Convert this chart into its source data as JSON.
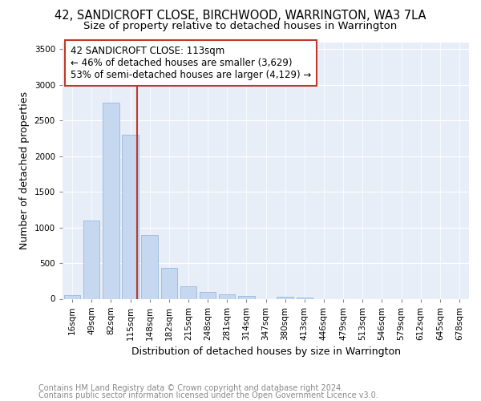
{
  "title": "42, SANDICROFT CLOSE, BIRCHWOOD, WARRINGTON, WA3 7LA",
  "subtitle": "Size of property relative to detached houses in Warrington",
  "xlabel": "Distribution of detached houses by size in Warrington",
  "ylabel": "Number of detached properties",
  "categories": [
    "16sqm",
    "49sqm",
    "82sqm",
    "115sqm",
    "148sqm",
    "182sqm",
    "215sqm",
    "248sqm",
    "281sqm",
    "314sqm",
    "347sqm",
    "380sqm",
    "413sqm",
    "446sqm",
    "479sqm",
    "513sqm",
    "546sqm",
    "579sqm",
    "612sqm",
    "645sqm",
    "678sqm"
  ],
  "values": [
    50,
    1100,
    2750,
    2300,
    900,
    430,
    170,
    100,
    60,
    40,
    0,
    30,
    20,
    0,
    0,
    0,
    0,
    0,
    0,
    0,
    0
  ],
  "bar_color": "#c5d8f0",
  "bar_edge_color": "#8ab0d8",
  "vline_x_index": 3,
  "vline_color": "#c0392b",
  "ylim": [
    0,
    3600
  ],
  "yticks": [
    0,
    500,
    1000,
    1500,
    2000,
    2500,
    3000,
    3500
  ],
  "annotation_line1": "42 SANDICROFT CLOSE: 113sqm",
  "annotation_line2": "← 46% of detached houses are smaller (3,629)",
  "annotation_line3": "53% of semi-detached houses are larger (4,129) →",
  "annotation_box_color": "#c0392b",
  "footer_line1": "Contains HM Land Registry data © Crown copyright and database right 2024.",
  "footer_line2": "Contains public sector information licensed under the Open Government Licence v3.0.",
  "background_color": "#e8eef8",
  "grid_color": "#ffffff",
  "title_fontsize": 10.5,
  "subtitle_fontsize": 9.5,
  "axis_label_fontsize": 9,
  "tick_fontsize": 7.5,
  "annotation_fontsize": 8.5,
  "footer_fontsize": 7,
  "ylabel_fontsize": 9
}
